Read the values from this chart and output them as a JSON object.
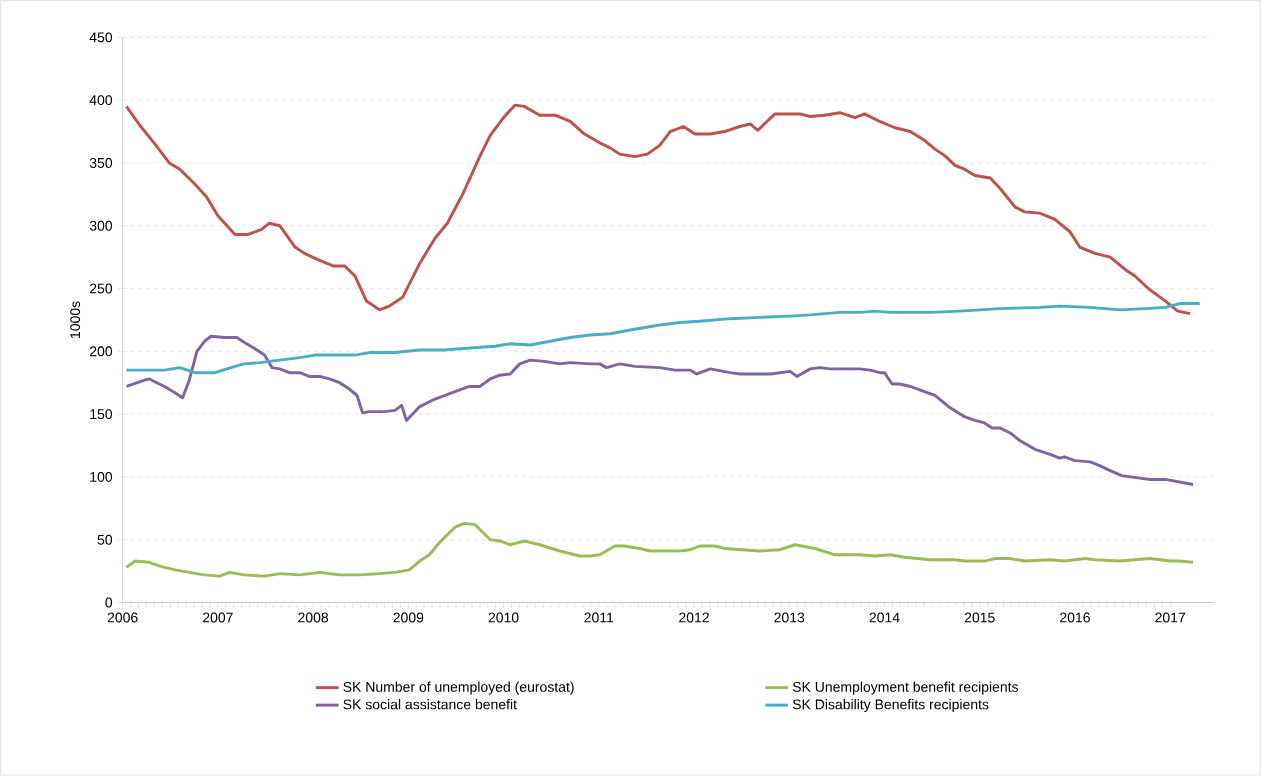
{
  "chart_data": {
    "type": "line",
    "ylabel": "1000s",
    "xlim": [
      2006,
      2017.45
    ],
    "xticks": [
      2006,
      2007,
      2008,
      2009,
      2010,
      2011,
      2012,
      2013,
      2014,
      2015,
      2016,
      2017
    ],
    "ylim": [
      0,
      450
    ],
    "yticks": [
      0,
      50,
      100,
      150,
      200,
      250,
      300,
      350,
      400,
      450
    ],
    "grid": "y",
    "legend": "bottom",
    "marker": "none",
    "line_style": "solid",
    "series": [
      {
        "name": "SK Number of unemployed (eurostat)",
        "color": "#c0504d",
        "x": [
          2006.04,
          2006.18,
          2006.34,
          2006.49,
          2006.6,
          2006.76,
          2006.88,
          2007.0,
          2007.18,
          2007.31,
          2007.46,
          2007.54,
          2007.65,
          2007.81,
          2007.91,
          2008.05,
          2008.21,
          2008.33,
          2008.44,
          2008.56,
          2008.7,
          2008.8,
          2008.94,
          2009.12,
          2009.28,
          2009.41,
          2009.57,
          2009.75,
          2009.86,
          2010.01,
          2010.12,
          2010.22,
          2010.38,
          2010.54,
          2010.7,
          2010.85,
          2011.01,
          2011.12,
          2011.22,
          2011.38,
          2011.51,
          2011.64,
          2011.75,
          2011.89,
          2012.01,
          2012.17,
          2012.32,
          2012.48,
          2012.59,
          2012.67,
          2012.85,
          2013.01,
          2013.11,
          2013.22,
          2013.37,
          2013.53,
          2013.69,
          2013.79,
          2013.95,
          2014.11,
          2014.27,
          2014.42,
          2014.53,
          2014.63,
          2014.74,
          2014.84,
          2014.95,
          2015.11,
          2015.21,
          2015.37,
          2015.47,
          2015.63,
          2015.79,
          2015.95,
          2016.05,
          2016.21,
          2016.37,
          2016.53,
          2016.63,
          2016.77,
          2016.95,
          2017.08,
          2017.21
        ],
        "values": [
          395,
          380,
          365,
          350,
          345,
          333,
          323,
          308,
          293,
          293,
          297,
          302,
          300,
          283,
          278,
          273,
          268,
          268,
          260,
          240,
          233,
          236,
          243,
          270,
          290,
          302,
          325,
          355,
          372,
          387,
          396,
          395,
          388,
          388,
          383,
          373,
          366,
          362,
          357,
          355,
          357,
          364,
          375,
          379,
          373,
          373,
          375,
          379,
          381,
          376,
          389,
          389,
          389,
          387,
          388,
          390,
          386,
          389,
          383,
          378,
          375,
          368,
          361,
          356,
          348,
          345,
          340,
          338,
          330,
          315,
          311,
          310,
          305,
          295,
          283,
          278,
          275,
          265,
          260,
          250,
          240,
          232,
          230
        ]
      },
      {
        "name": "SK Unemployment benefit recipients",
        "color": "#9bbb59",
        "x": [
          2006.04,
          2006.13,
          2006.28,
          2006.39,
          2006.55,
          2006.7,
          2006.86,
          2007.02,
          2007.12,
          2007.28,
          2007.49,
          2007.65,
          2007.86,
          2008.07,
          2008.28,
          2008.49,
          2008.7,
          2008.86,
          2009.01,
          2009.12,
          2009.22,
          2009.33,
          2009.49,
          2009.59,
          2009.7,
          2009.86,
          2009.96,
          2010.07,
          2010.22,
          2010.38,
          2010.59,
          2010.8,
          2010.91,
          2011.01,
          2011.17,
          2011.27,
          2011.43,
          2011.54,
          2011.85,
          2011.96,
          2012.06,
          2012.22,
          2012.32,
          2012.69,
          2012.9,
          2013.06,
          2013.27,
          2013.48,
          2013.74,
          2013.9,
          2014.06,
          2014.21,
          2014.48,
          2014.74,
          2014.84,
          2015.05,
          2015.16,
          2015.32,
          2015.47,
          2015.74,
          2015.89,
          2016.11,
          2016.21,
          2016.47,
          2016.79,
          2017.0,
          2017.1,
          2017.24
        ],
        "values": [
          28,
          33,
          32,
          29,
          26,
          24,
          22,
          21,
          24,
          22,
          21,
          23,
          22,
          24,
          22,
          22,
          23,
          24,
          26,
          33,
          38,
          48,
          60,
          63,
          62,
          50,
          49,
          46,
          49,
          46,
          41,
          37,
          37,
          38,
          45,
          45,
          43,
          41,
          41,
          42,
          45,
          45,
          43,
          41,
          42,
          46,
          43,
          38,
          38,
          37,
          38,
          36,
          34,
          34,
          33,
          33,
          35,
          35,
          33,
          34,
          33,
          35,
          34,
          33,
          35,
          33,
          33,
          32
        ]
      },
      {
        "name": "SK social assistance benefit",
        "color": "#8064a2",
        "x": [
          2006.04,
          2006.23,
          2006.28,
          2006.44,
          2006.55,
          2006.63,
          2006.7,
          2006.78,
          2006.86,
          2006.93,
          2007.07,
          2007.2,
          2007.28,
          2007.39,
          2007.49,
          2007.57,
          2007.65,
          2007.75,
          2007.86,
          2007.96,
          2008.07,
          2008.17,
          2008.28,
          2008.38,
          2008.46,
          2008.52,
          2008.59,
          2008.75,
          2008.86,
          2008.93,
          2008.98,
          2009.12,
          2009.28,
          2009.49,
          2009.64,
          2009.75,
          2009.86,
          2009.96,
          2010.07,
          2010.17,
          2010.28,
          2010.43,
          2010.59,
          2010.7,
          2010.91,
          2011.01,
          2011.08,
          2011.22,
          2011.38,
          2011.64,
          2011.8,
          2011.96,
          2012.03,
          2012.17,
          2012.38,
          2012.48,
          2012.8,
          2013.01,
          2013.08,
          2013.22,
          2013.32,
          2013.43,
          2013.74,
          2013.85,
          2013.95,
          2014.0,
          2014.08,
          2014.16,
          2014.27,
          2014.42,
          2014.53,
          2014.69,
          2014.84,
          2014.95,
          2015.05,
          2015.13,
          2015.21,
          2015.32,
          2015.42,
          2015.58,
          2015.74,
          2015.84,
          2015.89,
          2016.0,
          2016.16,
          2016.26,
          2016.37,
          2016.49,
          2016.68,
          2016.79,
          2016.95,
          2017.24
        ],
        "values": [
          172,
          177,
          178,
          172,
          167,
          163,
          177,
          200,
          208,
          212,
          211,
          211,
          207,
          202,
          197,
          187,
          186,
          183,
          183,
          180,
          180,
          178,
          175,
          170,
          165,
          151,
          152,
          152,
          153,
          157,
          145,
          156,
          162,
          168,
          172,
          172,
          178,
          181,
          182,
          190,
          193,
          192,
          190,
          191,
          190,
          190,
          187,
          190,
          188,
          187,
          185,
          185,
          182,
          186,
          183,
          182,
          182,
          184,
          180,
          186,
          187,
          186,
          186,
          185,
          183,
          183,
          174,
          174,
          172,
          168,
          165,
          155,
          148,
          145,
          143,
          139,
          139,
          135,
          129,
          122,
          118,
          115,
          116,
          113,
          112,
          109,
          105,
          101,
          99,
          98,
          98,
          94
        ]
      },
      {
        "name": "SK Disability Benefits recipients",
        "color": "#4bacc6",
        "x": [
          2006.04,
          2006.44,
          2006.6,
          2006.76,
          2006.97,
          2007.18,
          2007.28,
          2007.44,
          2007.65,
          2007.86,
          2008.02,
          2008.44,
          2008.59,
          2008.86,
          2009.12,
          2009.38,
          2009.54,
          2009.91,
          2010.07,
          2010.28,
          2010.49,
          2010.7,
          2010.91,
          2011.12,
          2011.33,
          2011.64,
          2011.85,
          2012.06,
          2012.38,
          2012.69,
          2013.01,
          2013.22,
          2013.53,
          2013.74,
          2013.9,
          2014.06,
          2014.48,
          2014.79,
          2015.0,
          2015.21,
          2015.63,
          2015.84,
          2016.16,
          2016.47,
          2016.74,
          2016.95,
          2017.1,
          2017.31
        ],
        "values": [
          185,
          185,
          187,
          183,
          183,
          188,
          190,
          191,
          193,
          195,
          197,
          197,
          199,
          199,
          201,
          201,
          202,
          204,
          206,
          205,
          208,
          211,
          213,
          214,
          217,
          221,
          223,
          224,
          226,
          227,
          228,
          229,
          231,
          231,
          232,
          231,
          231,
          232,
          233,
          234,
          235,
          236,
          235,
          233,
          234,
          235,
          238,
          238
        ]
      }
    ]
  }
}
